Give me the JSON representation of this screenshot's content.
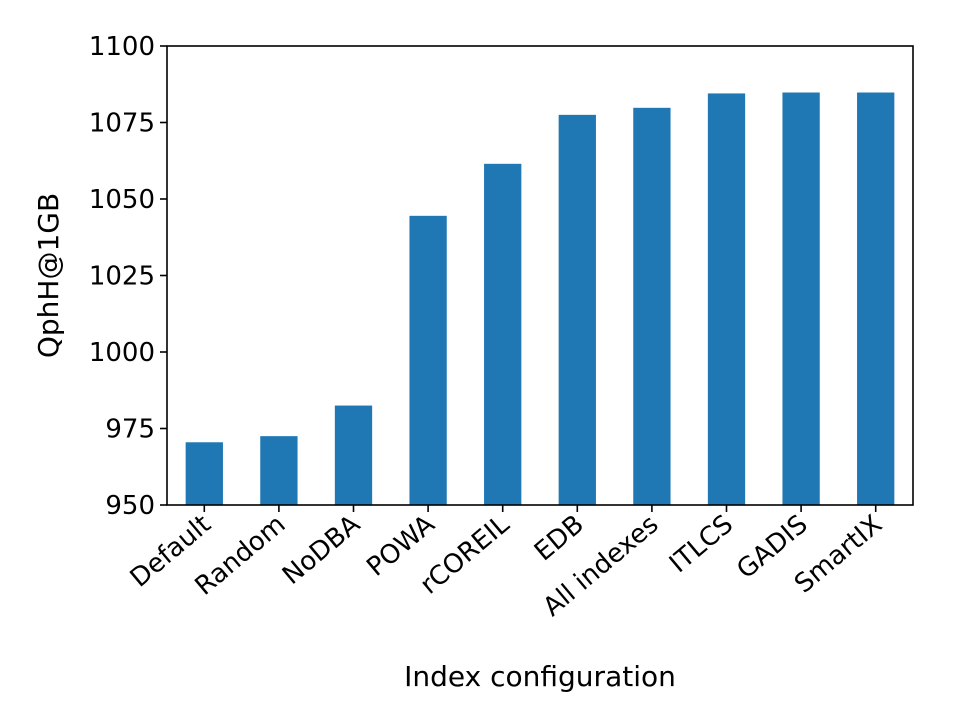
{
  "chart_data": {
    "type": "bar",
    "categories": [
      "Default",
      "Random",
      "NoDBA",
      "POWA",
      "rCOREIL",
      "EDB",
      "All indexes",
      "ITLCS",
      "GADIS",
      "SmartIX"
    ],
    "values": [
      970.5,
      972.5,
      982.5,
      1044.5,
      1061.5,
      1077.5,
      1079.8,
      1084.5,
      1084.8,
      1084.8
    ],
    "title": "",
    "xlabel": "Index configuration",
    "ylabel": "QphH@1GB",
    "ylim": [
      950,
      1100
    ],
    "yticks": [
      "950",
      "975",
      "1000",
      "1025",
      "1050",
      "1075",
      "1100"
    ],
    "bar_color": "#1f77b4",
    "grid": false,
    "legend": "none"
  }
}
